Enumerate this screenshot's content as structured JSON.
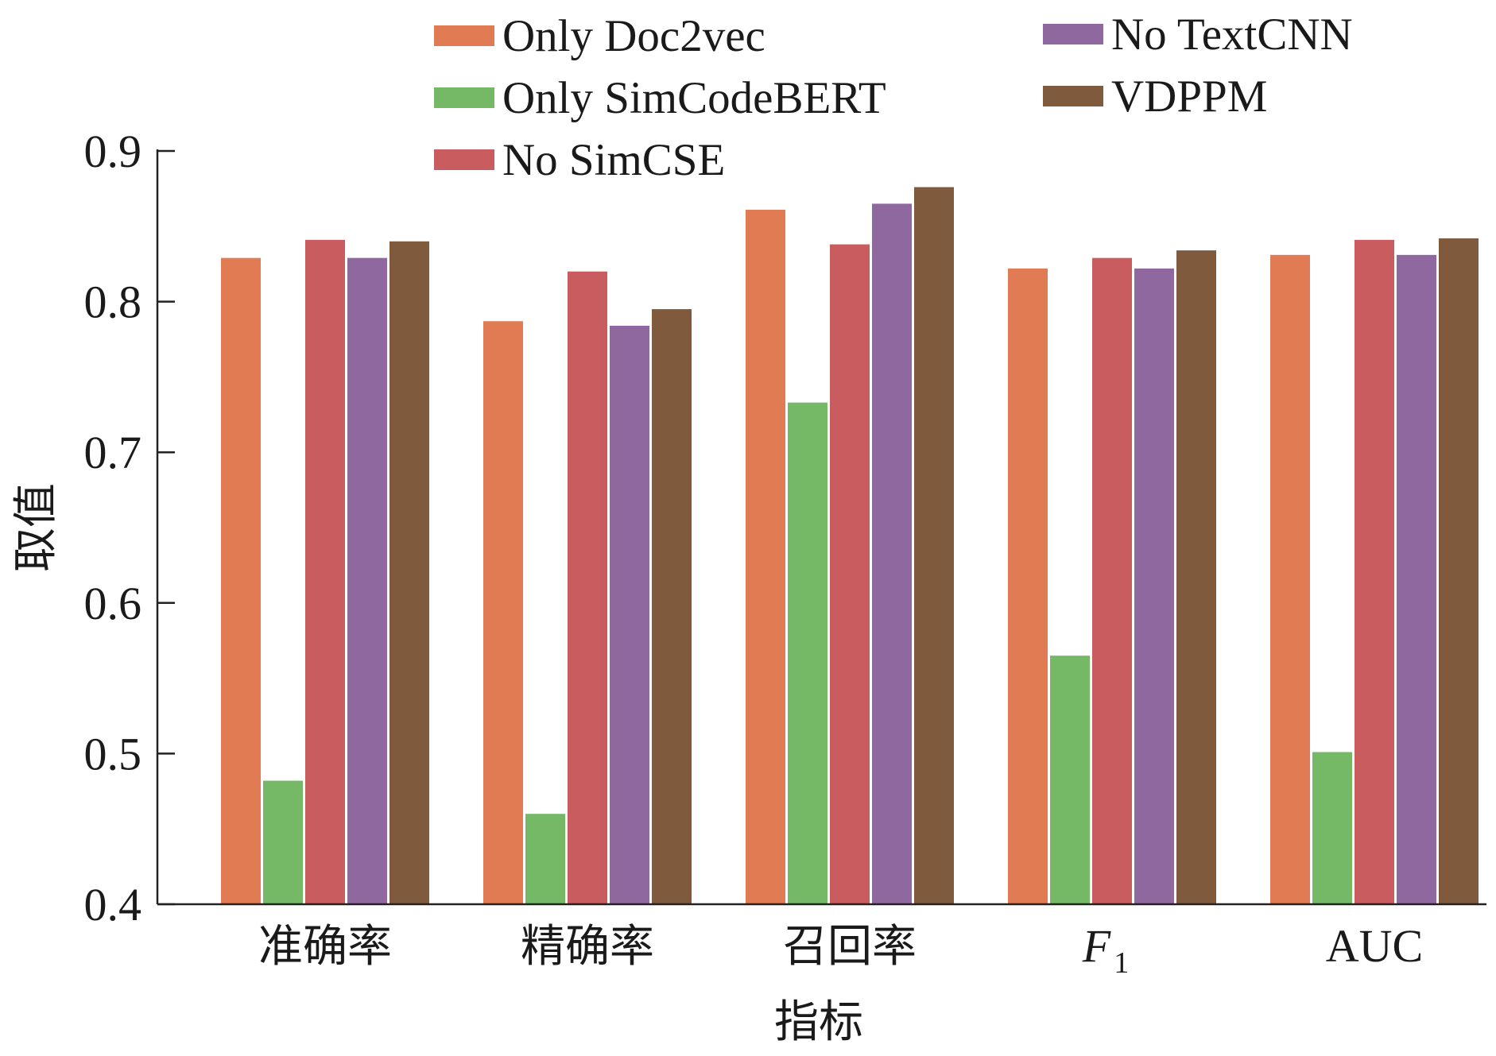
{
  "chart_data": {
    "type": "bar",
    "categories": [
      "准确率",
      "精确率",
      "召回率",
      "F1",
      "AUC"
    ],
    "series": [
      {
        "name": "Only Doc2vec",
        "color": "#E07B54",
        "values": [
          0.829,
          0.787,
          0.861,
          0.822,
          0.831
        ]
      },
      {
        "name": "Only SimCodeBERT",
        "color": "#75B966",
        "values": [
          0.482,
          0.46,
          0.733,
          0.565,
          0.501
        ]
      },
      {
        "name": "No SimCSE",
        "color": "#C85C5E",
        "values": [
          0.841,
          0.82,
          0.838,
          0.829,
          0.841
        ]
      },
      {
        "name": "No TextCNN",
        "color": "#8F68A0",
        "values": [
          0.829,
          0.784,
          0.865,
          0.822,
          0.831
        ]
      },
      {
        "name": "VDPPM",
        "color": "#7F5A3C",
        "values": [
          0.84,
          0.795,
          0.876,
          0.834,
          0.842
        ]
      }
    ],
    "xlabel": "指标",
    "ylabel": "取值",
    "ylim": [
      0.4,
      0.9
    ],
    "yticks": [
      "0.4",
      "0.5",
      "0.6",
      "0.7",
      "0.8",
      "0.9"
    ],
    "grid": false,
    "legend": "top"
  }
}
